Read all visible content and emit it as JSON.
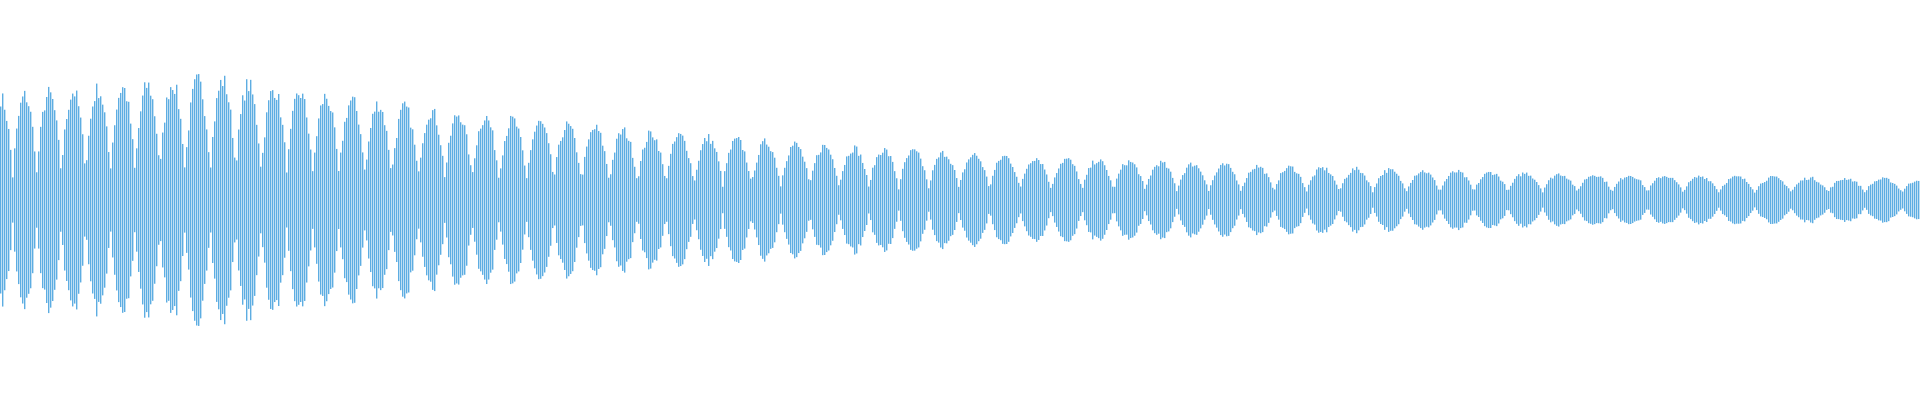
{
  "waveform": {
    "type": "audio-waveform",
    "color": "#5dade2",
    "background": "#ffffff",
    "envelope": "decaying",
    "beating": true
  }
}
